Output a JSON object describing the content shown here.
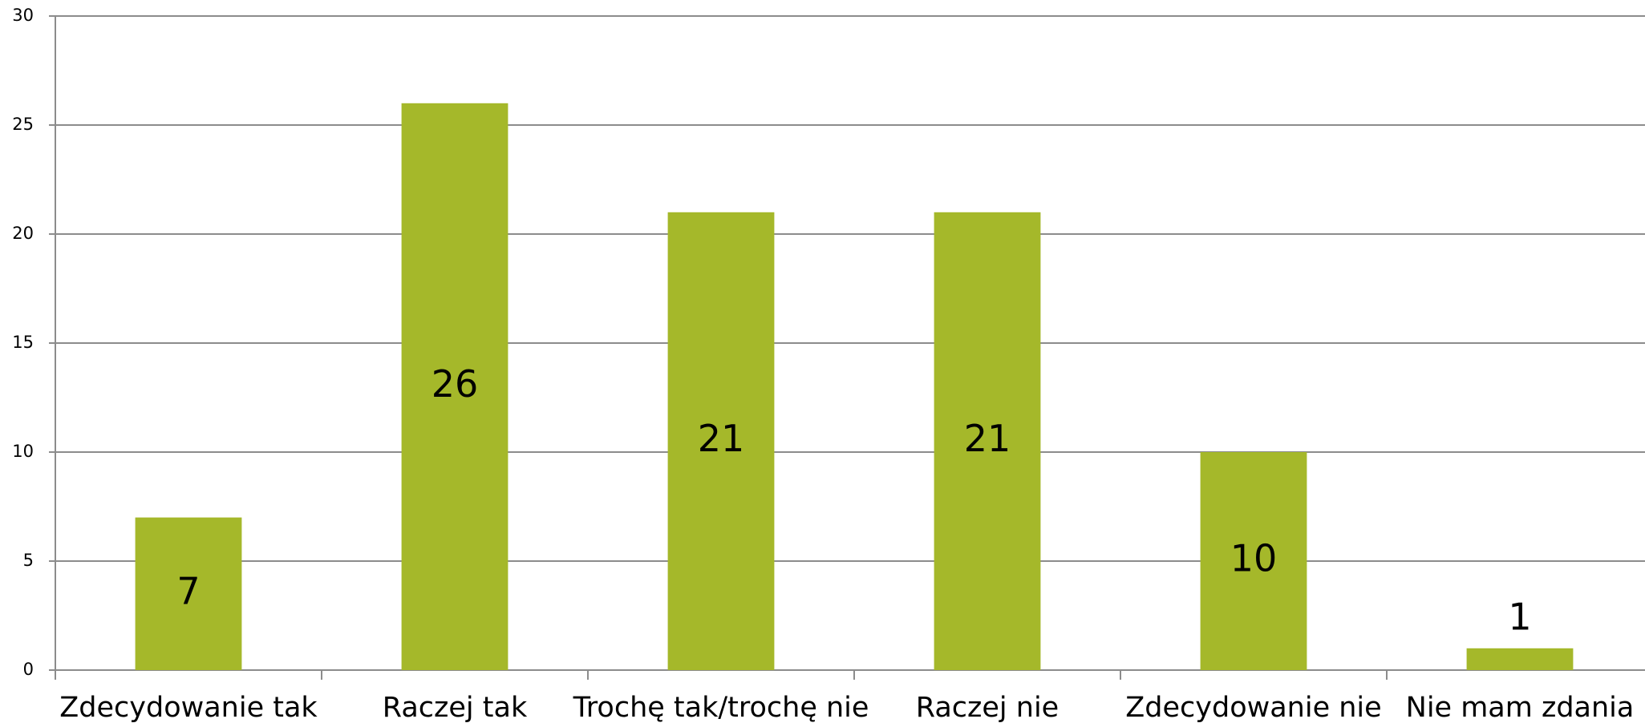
{
  "chart_data": {
    "type": "bar",
    "categories": [
      "Zdecydowanie tak",
      "Raczej tak",
      "Trochę tak/trochę nie",
      "Raczej nie",
      "Zdecydowanie nie",
      "Nie mam zdania"
    ],
    "values": [
      7,
      26,
      21,
      21,
      10,
      1
    ],
    "color": "#a5b82a",
    "ylim": [
      0,
      30
    ],
    "yticks": [
      0,
      5,
      10,
      15,
      20,
      25,
      30
    ],
    "grid": true
  }
}
